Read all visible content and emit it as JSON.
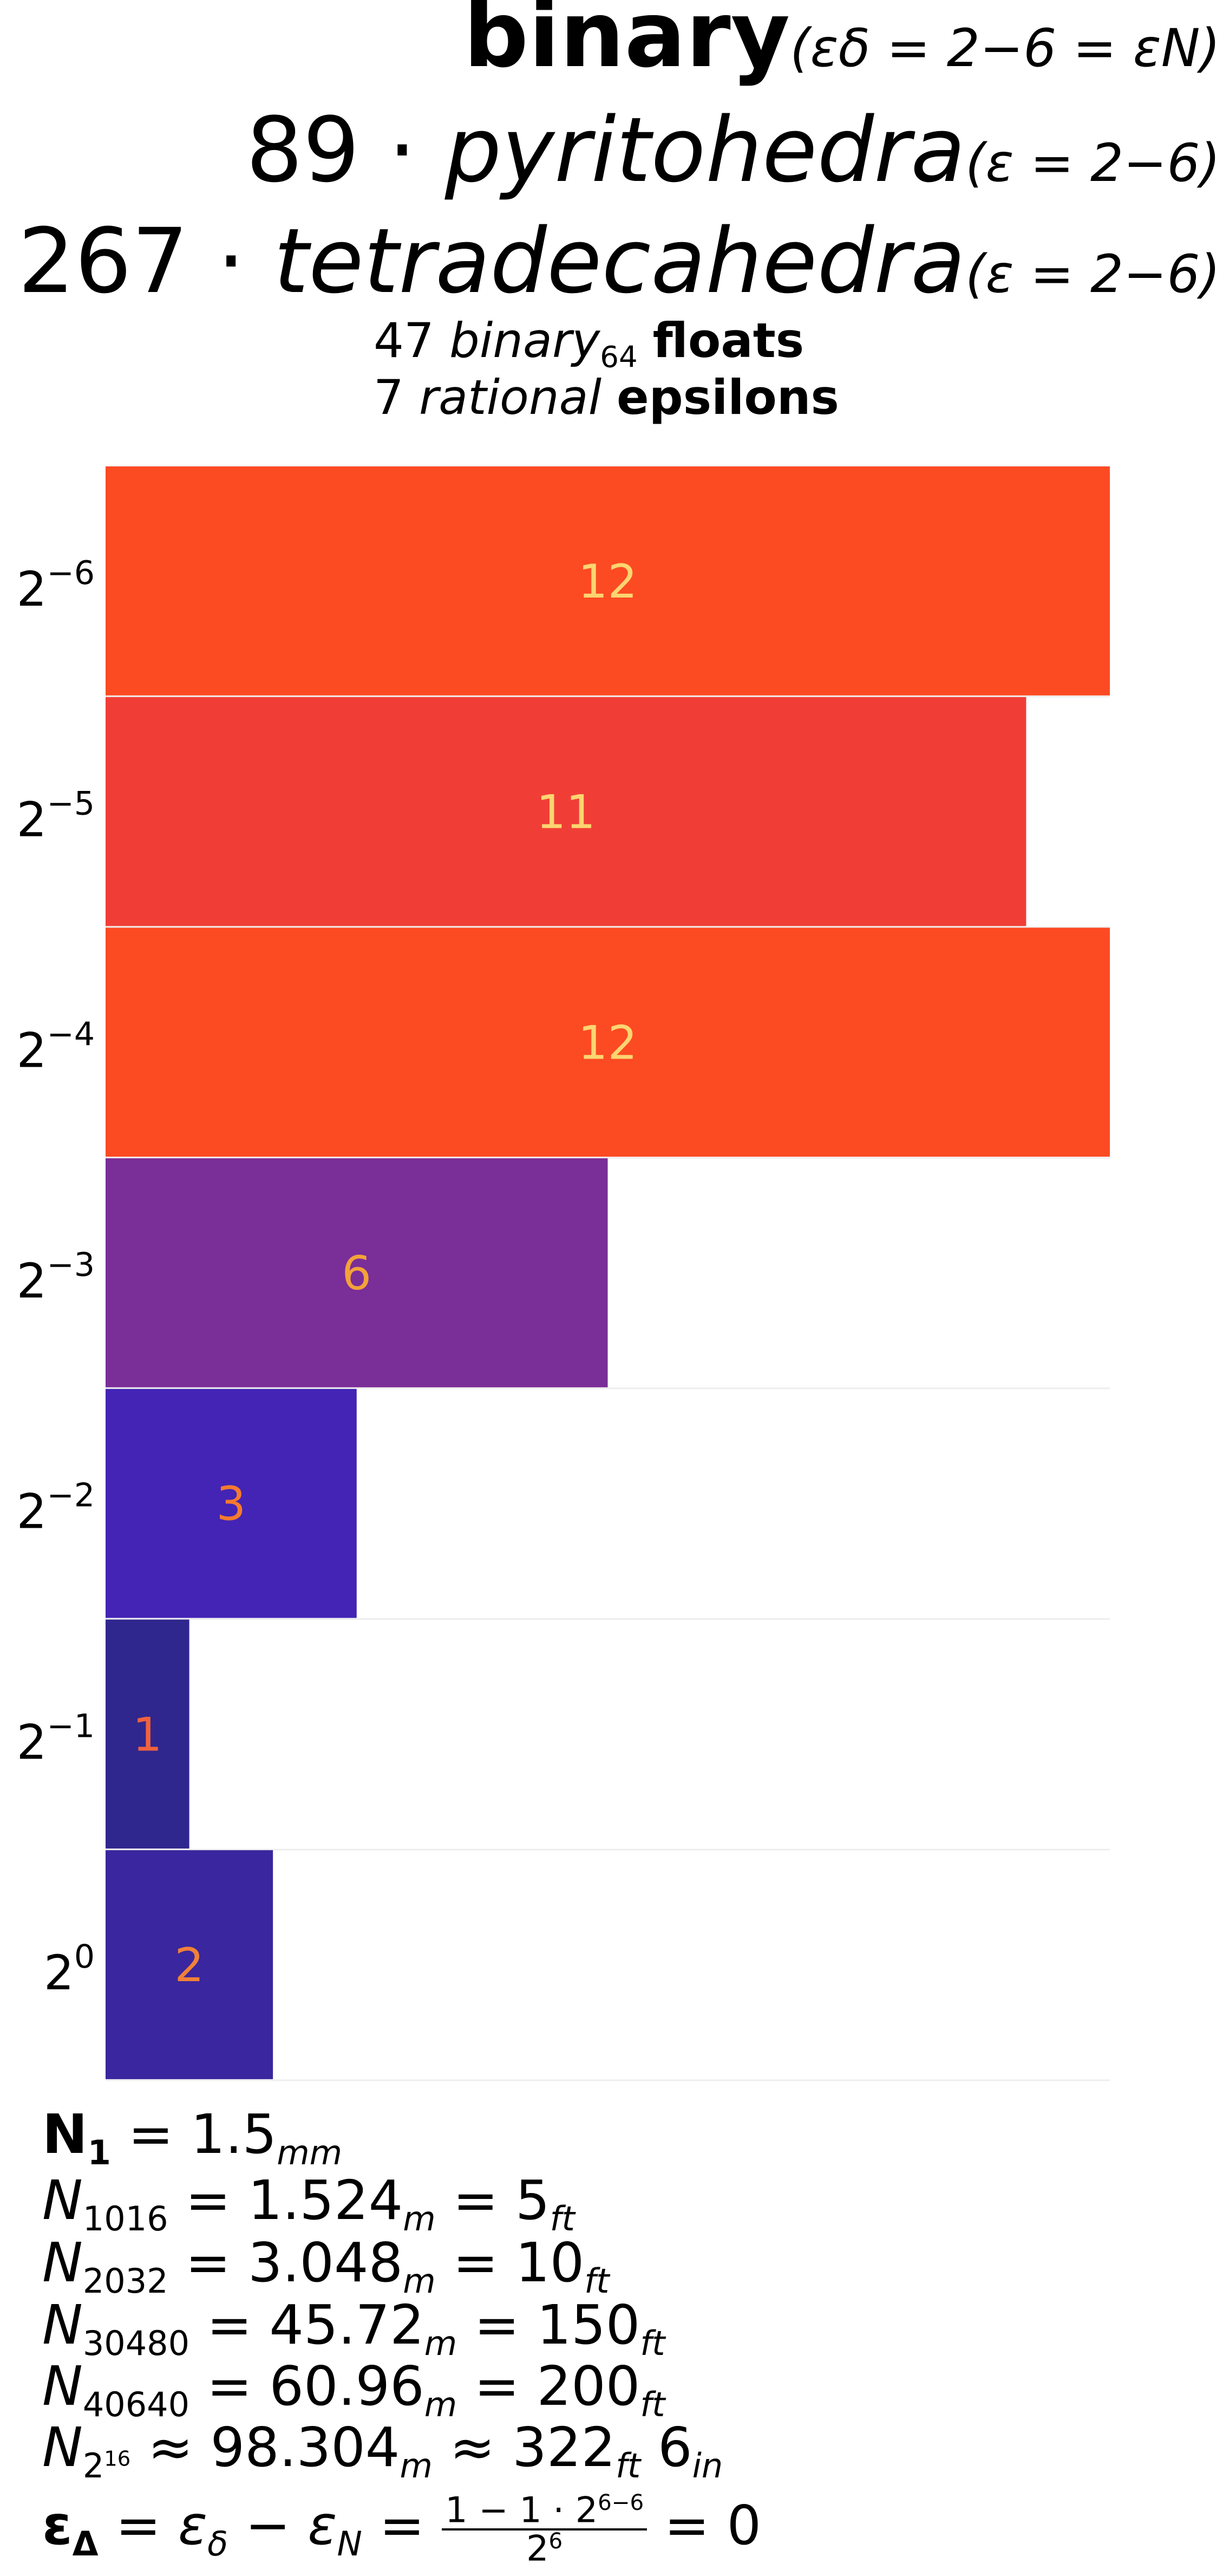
{
  "title": {
    "main": "binary",
    "main_condition": "(εδ = 2−6 = εN)",
    "line2_count": "89",
    "line2_word": "pyritohedra",
    "line2_condition": "(ε = 2−6)",
    "line3_count": "267",
    "line3_word": "tetradecahedra",
    "line3_condition": "(ε = 2−6)"
  },
  "subtitle": {
    "floats_count": "47",
    "floats_type": "binary",
    "floats_sub": "64",
    "floats_word": "floats",
    "eps_count": "7",
    "eps_type": "rational",
    "eps_word": "epsilons"
  },
  "chart_data": {
    "type": "bar",
    "orientation": "horizontal",
    "categories": [
      "2^-6",
      "2^-5",
      "2^-4",
      "2^-3",
      "2^-2",
      "2^-1",
      "2^0"
    ],
    "category_labels": [
      {
        "base": "2",
        "exp": "−6"
      },
      {
        "base": "2",
        "exp": "−5"
      },
      {
        "base": "2",
        "exp": "−4"
      },
      {
        "base": "2",
        "exp": "−3"
      },
      {
        "base": "2",
        "exp": "−2"
      },
      {
        "base": "2",
        "exp": "−1"
      },
      {
        "base": "2",
        "exp": "0"
      }
    ],
    "values": [
      12,
      11,
      12,
      6,
      3,
      1,
      2
    ],
    "bar_colors": [
      "#fc4a23",
      "#f03e37",
      "#fc4a23",
      "#7a2e97",
      "#4324b5",
      "#30278e",
      "#3a269e"
    ],
    "label_colors": [
      "#fcd570",
      "#fcd570",
      "#fcd570",
      "#f3a23a",
      "#f57a30",
      "#f0623e",
      "#f08138"
    ],
    "xlim": [
      0,
      12
    ],
    "grid": false,
    "legend": "none",
    "data_labels": true
  },
  "notes": {
    "n1": {
      "name": "N",
      "sub": "1",
      "value": "1.5",
      "unit": "mm"
    },
    "n1016": {
      "name": "N",
      "sub": "1016",
      "v1": "1.524",
      "u1": "m",
      "v2": "5",
      "u2": "ft"
    },
    "n2032": {
      "name": "N",
      "sub": "2032",
      "v1": "3.048",
      "u1": "m",
      "v2": "10",
      "u2": "ft"
    },
    "n30480": {
      "name": "N",
      "sub": "30480",
      "v1": "45.72",
      "u1": "m",
      "v2": "150",
      "u2": "ft"
    },
    "n40640": {
      "name": "N",
      "sub": "40640",
      "v1": "60.96",
      "u1": "m",
      "v2": "200",
      "u2": "ft"
    },
    "n216": {
      "name": "N",
      "sub_base": "2",
      "sub_exp": "16",
      "v1": "98.304",
      "u1": "m",
      "v2": "322",
      "u2": "ft",
      "v3": "6",
      "u3": "in"
    },
    "eps_delta": {
      "lhs": "ε",
      "lhs_sub": "Δ",
      "a": "ε",
      "a_sub": "δ",
      "b": "ε",
      "b_sub": "N",
      "numerator": "1 − 1 · 2",
      "numerator_exp": "6−6",
      "denominator": "2",
      "denominator_exp": "6",
      "result": "0"
    }
  }
}
